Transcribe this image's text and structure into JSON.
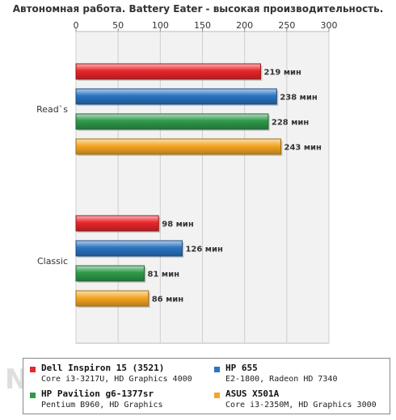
{
  "chart_data": {
    "type": "bar",
    "orientation": "horizontal",
    "title": "Автономная работа. Battery Eater - высокая производительность.",
    "categories": [
      "Read`s",
      "Classic"
    ],
    "xlim": [
      0,
      300
    ],
    "xticks": [
      "0",
      "50",
      "100",
      "150",
      "200",
      "250",
      "300"
    ],
    "grid": true,
    "legend_position": "bottom",
    "series": [
      {
        "name": "Dell Inspiron 15 (3521)",
        "description": "Core i3-3217U, HD Graphics 4000",
        "color": "#e8262b",
        "values": [
          219,
          98
        ],
        "labels": [
          "219 мин",
          "98 мин"
        ]
      },
      {
        "name": "HP 655",
        "description": "E2-1800, Radeon HD 7340",
        "color": "#2a74c2",
        "values": [
          238,
          126
        ],
        "labels": [
          "238 мин",
          "126 мин"
        ]
      },
      {
        "name": "HP Pavilion g6-1377sr",
        "description": "Pentium B960, HD Graphics",
        "color": "#2e9a4a",
        "values": [
          228,
          81
        ],
        "labels": [
          "228 мин",
          "81 мин"
        ]
      },
      {
        "name": "ASUS X501A",
        "description": "Core i3-2350M, HD Graphics 3000",
        "color": "#f5a623",
        "values": [
          243,
          86
        ],
        "labels": [
          "243 мин",
          "86 мин"
        ]
      }
    ]
  },
  "watermark": "NOTEBOOK"
}
